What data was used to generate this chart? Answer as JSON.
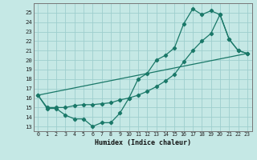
{
  "xlabel": "Humidex (Indice chaleur)",
  "bg_color": "#c5e8e5",
  "grid_color": "#9ecece",
  "line_color": "#1a7868",
  "xlim": [
    -0.5,
    23.5
  ],
  "ylim": [
    12.5,
    26.0
  ],
  "yticks": [
    13,
    14,
    15,
    16,
    17,
    18,
    19,
    20,
    21,
    22,
    23,
    24,
    25
  ],
  "xticks": [
    0,
    1,
    2,
    3,
    4,
    5,
    6,
    7,
    8,
    9,
    10,
    11,
    12,
    13,
    14,
    15,
    16,
    17,
    18,
    19,
    20,
    21,
    22,
    23
  ],
  "line1_x": [
    0,
    1,
    2,
    3,
    4,
    5,
    6,
    7,
    8,
    9,
    10,
    11,
    12,
    13,
    14,
    15,
    16,
    17,
    18,
    19,
    20,
    21,
    22,
    23
  ],
  "line1_y": [
    16.3,
    14.9,
    14.9,
    14.2,
    13.8,
    13.8,
    13.0,
    13.4,
    13.4,
    14.4,
    16.0,
    18.0,
    18.6,
    20.0,
    20.5,
    21.3,
    23.8,
    25.4,
    24.8,
    25.2,
    24.8,
    22.2,
    21.0,
    20.7
  ],
  "line2_x": [
    0,
    1,
    2,
    3,
    4,
    5,
    6,
    7,
    8,
    9,
    10,
    11,
    12,
    13,
    14,
    15,
    16,
    17,
    18,
    19,
    20,
    21,
    22,
    23
  ],
  "line2_y": [
    16.3,
    15.0,
    15.0,
    15.0,
    15.2,
    15.3,
    15.3,
    15.4,
    15.5,
    15.8,
    16.0,
    16.3,
    16.7,
    17.2,
    17.8,
    18.5,
    19.8,
    21.0,
    22.0,
    22.8,
    24.8,
    22.2,
    21.0,
    20.7
  ],
  "line3_x": [
    0,
    23
  ],
  "line3_y": [
    16.3,
    20.7
  ]
}
